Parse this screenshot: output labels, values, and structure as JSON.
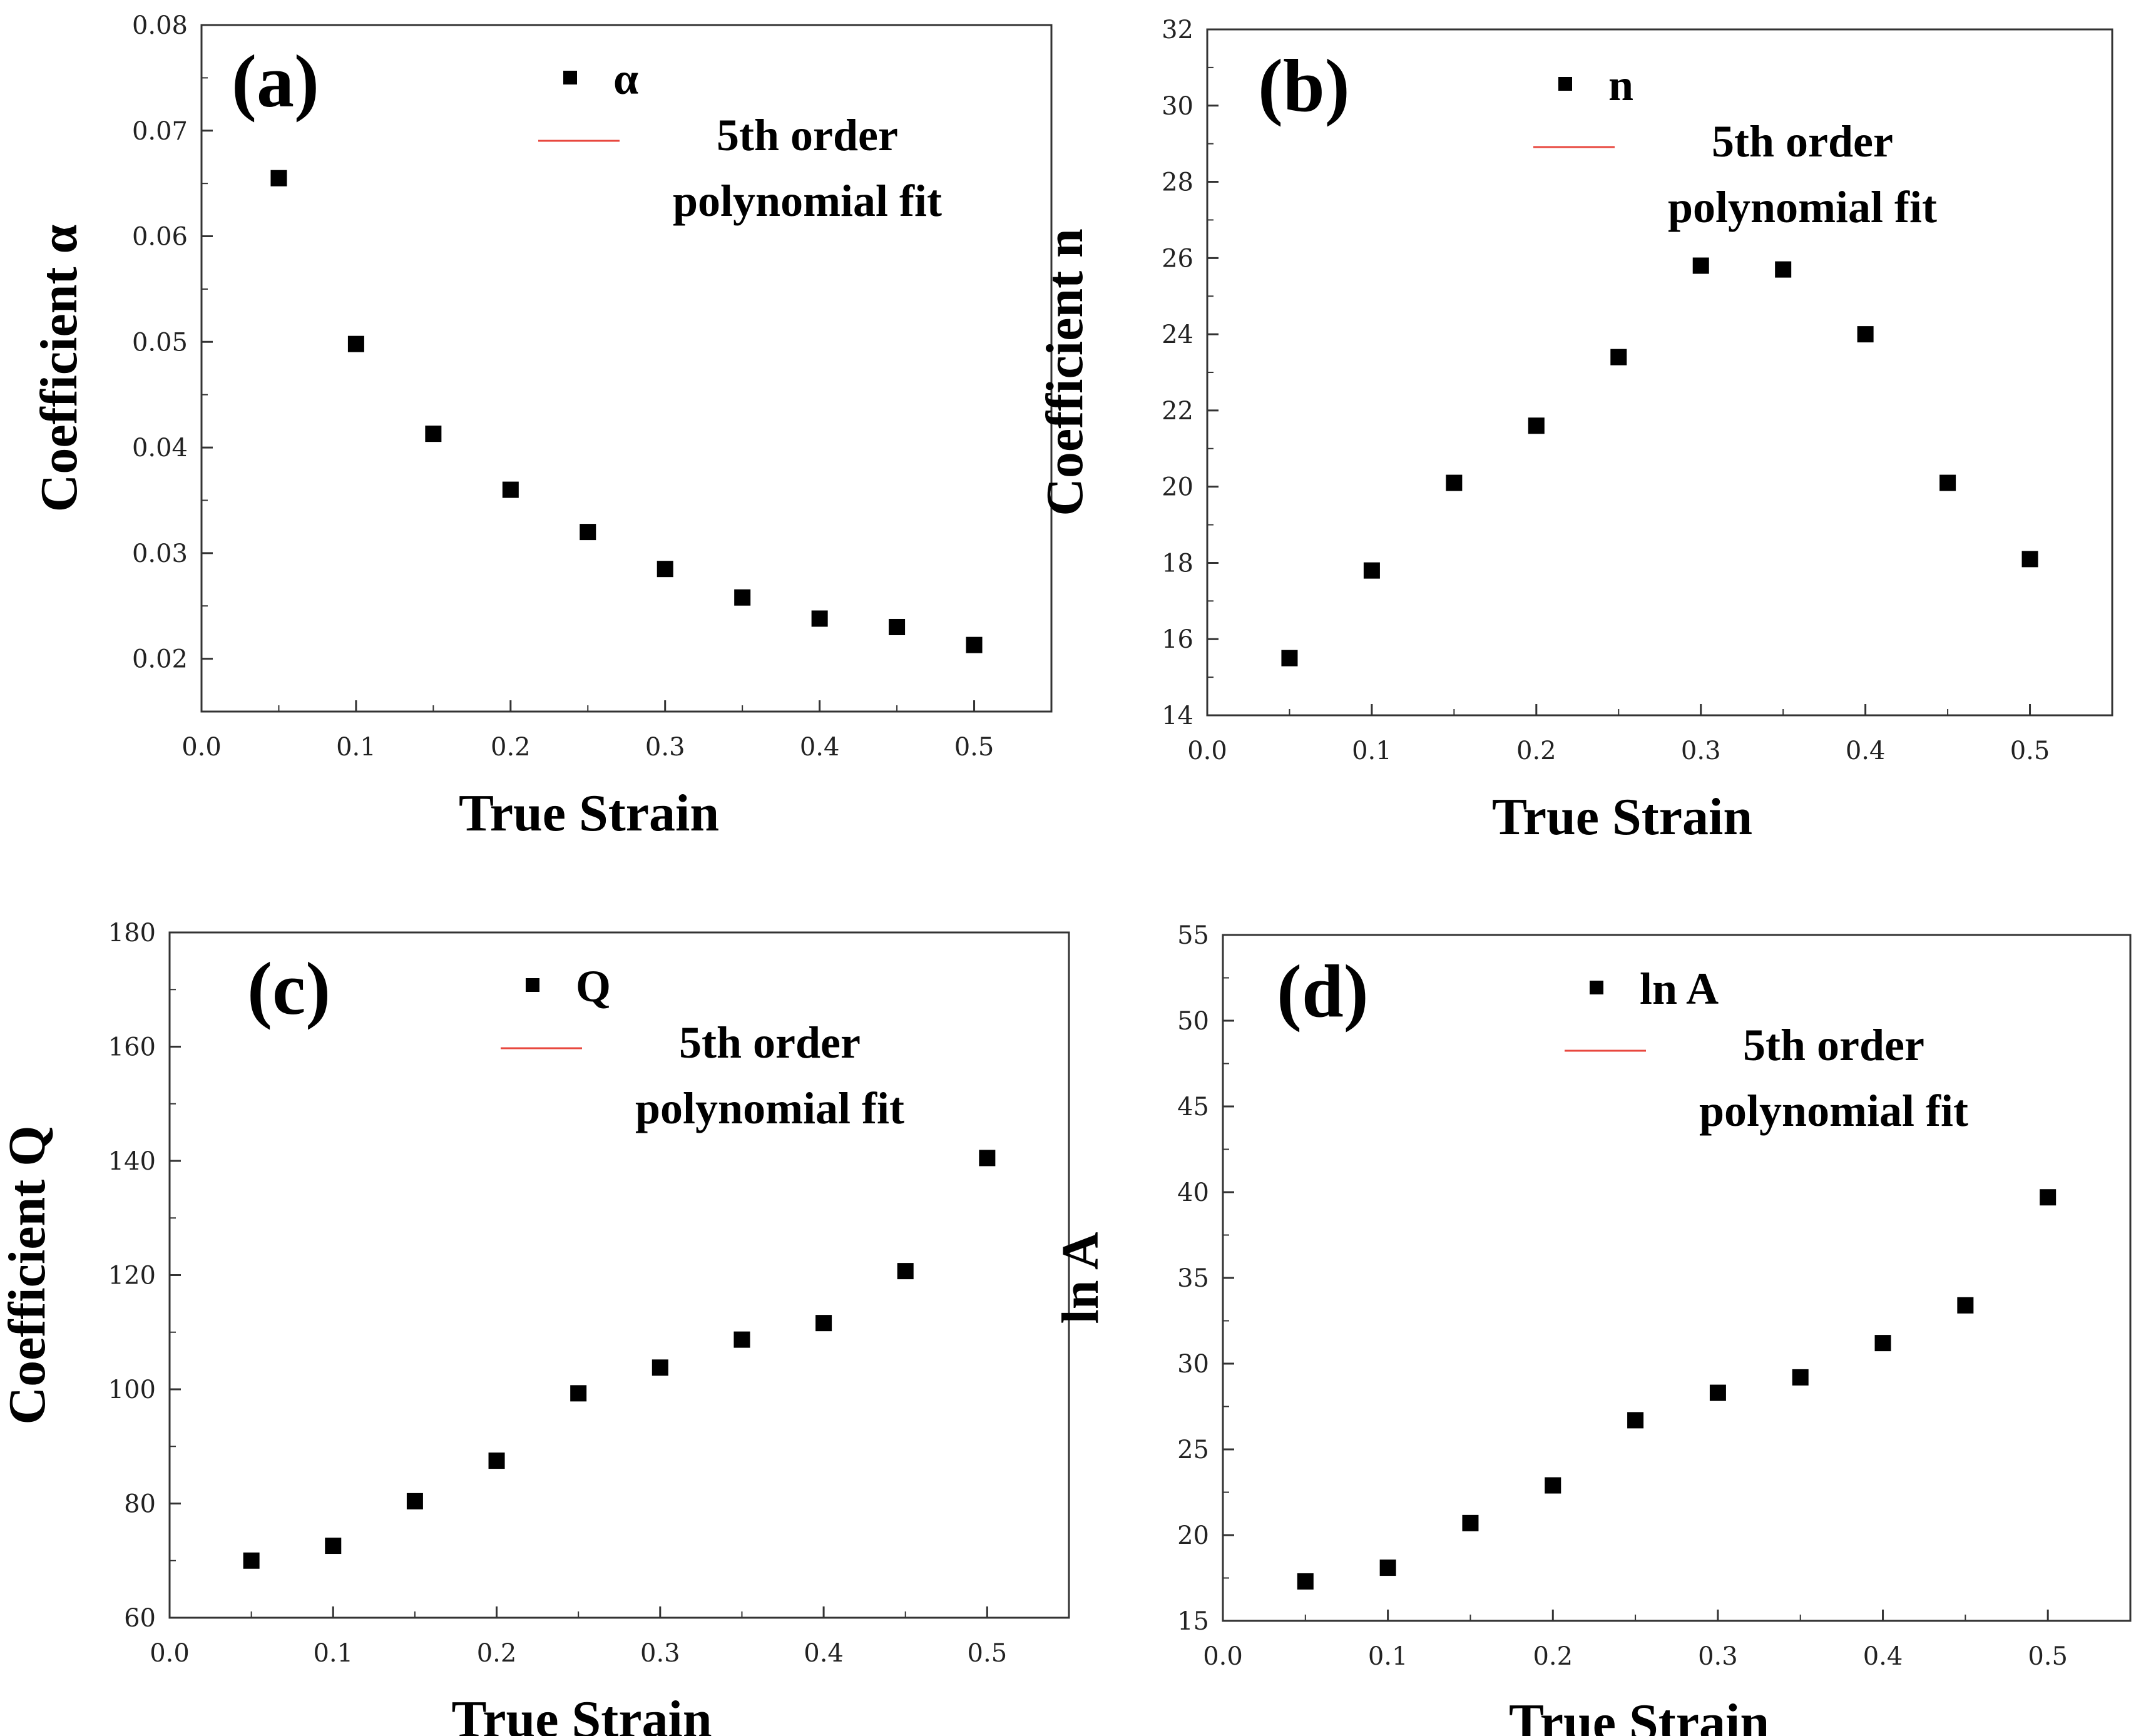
{
  "colors": {
    "marker": "#000000",
    "fit_line": "#e8483f",
    "frame": "#333333"
  },
  "chart_data": [
    {
      "type": "scatter",
      "panel": "(a)",
      "xlabel": "True Strain",
      "ylabel": "Coefficient α",
      "xlim": [
        0.0,
        0.55
      ],
      "ylim": [
        0.015,
        0.08
      ],
      "xticks": [
        "0.0",
        "0.1",
        "0.2",
        "0.3",
        "0.4",
        "0.5"
      ],
      "yticks": [
        "0.02",
        "0.03",
        "0.04",
        "0.05",
        "0.06",
        "0.07",
        "0.08"
      ],
      "legend_marker": "α",
      "legend_fit": [
        "5th order",
        "polynomial fit"
      ],
      "series": [
        {
          "name": "α",
          "x": [
            0.05,
            0.1,
            0.15,
            0.2,
            0.25,
            0.3,
            0.35,
            0.4,
            0.45,
            0.5
          ],
          "y": [
            0.0655,
            0.0498,
            0.0413,
            0.036,
            0.032,
            0.0285,
            0.0258,
            0.0238,
            0.023,
            0.0213
          ]
        }
      ]
    },
    {
      "type": "scatter",
      "panel": "(b)",
      "xlabel": "True Strain",
      "ylabel": "Coefficient n",
      "xlim": [
        0.0,
        0.55
      ],
      "ylim": [
        14,
        32
      ],
      "xticks": [
        "0.0",
        "0.1",
        "0.2",
        "0.3",
        "0.4",
        "0.5"
      ],
      "yticks": [
        "14",
        "16",
        "18",
        "20",
        "22",
        "24",
        "26",
        "28",
        "30",
        "32"
      ],
      "legend_marker": "n",
      "legend_fit": [
        "5th order",
        "polynomial fit"
      ],
      "series": [
        {
          "name": "n",
          "x": [
            0.05,
            0.1,
            0.15,
            0.2,
            0.25,
            0.3,
            0.35,
            0.4,
            0.45,
            0.5
          ],
          "y": [
            15.5,
            17.8,
            20.1,
            21.6,
            23.4,
            25.8,
            25.7,
            24.0,
            20.1,
            18.1
          ]
        }
      ]
    },
    {
      "type": "scatter",
      "panel": "(c)",
      "xlabel": "True Strain",
      "ylabel": "Coefficient Q",
      "xlim": [
        0.0,
        0.55
      ],
      "ylim": [
        60,
        180
      ],
      "xticks": [
        "0.0",
        "0.1",
        "0.2",
        "0.3",
        "0.4",
        "0.5"
      ],
      "yticks": [
        "60",
        "80",
        "100",
        "120",
        "140",
        "160",
        "180"
      ],
      "legend_marker": "Q",
      "legend_fit": [
        "5th order",
        "polynomial fit"
      ],
      "series": [
        {
          "name": "Q",
          "x": [
            0.05,
            0.1,
            0.15,
            0.2,
            0.25,
            0.3,
            0.35,
            0.4,
            0.45,
            0.5
          ],
          "y": [
            70.0,
            72.6,
            80.4,
            87.5,
            99.3,
            103.8,
            108.7,
            111.6,
            120.7,
            140.5
          ]
        }
      ]
    },
    {
      "type": "scatter",
      "panel": "(d)",
      "xlabel": "True Strain",
      "ylabel": "ln A",
      "xlim": [
        0.0,
        0.55
      ],
      "ylim": [
        15,
        55
      ],
      "xticks": [
        "0.0",
        "0.1",
        "0.2",
        "0.3",
        "0.4",
        "0.5"
      ],
      "yticks": [
        "15",
        "20",
        "25",
        "30",
        "35",
        "40",
        "45",
        "50",
        "55"
      ],
      "legend_marker": "ln A",
      "legend_fit": [
        "5th order",
        "polynomial fit"
      ],
      "series": [
        {
          "name": "ln A",
          "x": [
            0.05,
            0.1,
            0.15,
            0.2,
            0.25,
            0.3,
            0.35,
            0.4,
            0.45,
            0.5
          ],
          "y": [
            17.3,
            18.1,
            20.7,
            22.9,
            26.7,
            28.3,
            29.2,
            31.2,
            33.4,
            39.7
          ]
        }
      ]
    }
  ]
}
